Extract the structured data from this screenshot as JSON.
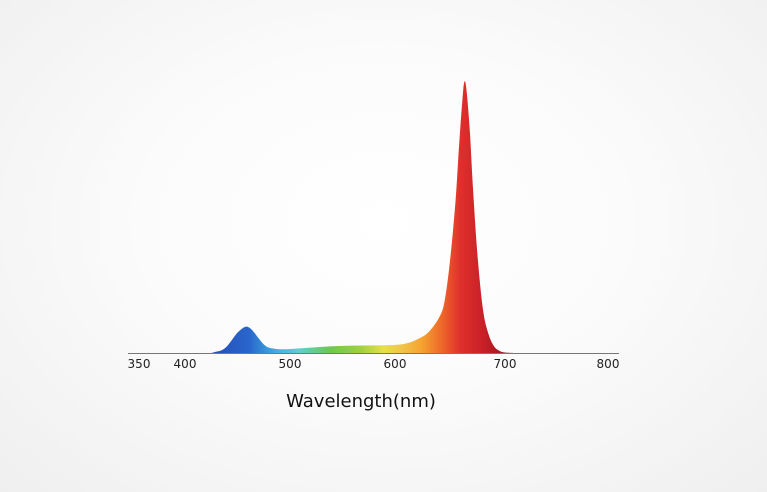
{
  "chart_data": {
    "type": "area",
    "title": "",
    "xlabel": "Wavelength(nm)",
    "ylabel": "",
    "xlim": [
      350,
      800
    ],
    "ylim": [
      0,
      1
    ],
    "x_ticks": [
      350,
      400,
      500,
      600,
      700,
      800
    ],
    "x_tick_labels": [
      "350",
      "400",
      "500",
      "600",
      "700",
      "800"
    ],
    "grid": false,
    "legend": "none",
    "series": [
      {
        "points": [
          [
            425,
            0.0
          ],
          [
            430,
            0.005
          ],
          [
            435,
            0.01
          ],
          [
            440,
            0.025
          ],
          [
            445,
            0.05
          ],
          [
            450,
            0.075
          ],
          [
            455,
            0.092
          ],
          [
            458,
            0.097
          ],
          [
            461,
            0.094
          ],
          [
            465,
            0.08
          ],
          [
            470,
            0.055
          ],
          [
            475,
            0.032
          ],
          [
            480,
            0.02
          ],
          [
            490,
            0.014
          ],
          [
            500,
            0.015
          ],
          [
            520,
            0.02
          ],
          [
            540,
            0.025
          ],
          [
            560,
            0.027
          ],
          [
            580,
            0.028
          ],
          [
            600,
            0.03
          ],
          [
            610,
            0.035
          ],
          [
            620,
            0.05
          ],
          [
            630,
            0.075
          ],
          [
            640,
            0.13
          ],
          [
            645,
            0.19
          ],
          [
            650,
            0.34
          ],
          [
            655,
            0.56
          ],
          [
            658,
            0.75
          ],
          [
            661,
            0.92
          ],
          [
            663,
            1.0
          ],
          [
            665,
            0.97
          ],
          [
            668,
            0.82
          ],
          [
            671,
            0.6
          ],
          [
            675,
            0.36
          ],
          [
            680,
            0.16
          ],
          [
            685,
            0.07
          ],
          [
            690,
            0.025
          ],
          [
            695,
            0.008
          ],
          [
            700,
            0.002
          ],
          [
            710,
            0.0
          ]
        ]
      }
    ]
  }
}
